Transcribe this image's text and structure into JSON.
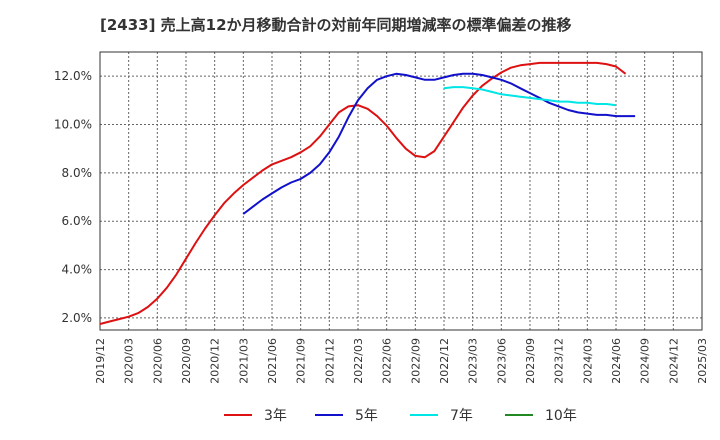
{
  "title": "[2433]  売上高12か月移動合計の対前年同期増減率の標準偏差の推移",
  "chart_data": {
    "type": "line",
    "y_unit": "%",
    "ylim": [
      1.5,
      13.0
    ],
    "yticks": [
      2.0,
      4.0,
      6.0,
      8.0,
      10.0,
      12.0
    ],
    "ytick_labels": [
      "2.0%",
      "4.0%",
      "6.0%",
      "8.0%",
      "10.0%",
      "12.0%"
    ],
    "xlim": [
      "2019-12",
      "2025-03"
    ],
    "xtick_labels": [
      "2019/12",
      "2020/03",
      "2020/06",
      "2020/09",
      "2020/12",
      "2021/03",
      "2021/06",
      "2021/09",
      "2021/12",
      "2022/03",
      "2022/06",
      "2022/09",
      "2022/12",
      "2023/03",
      "2023/06",
      "2023/09",
      "2023/12",
      "2024/03",
      "2024/06",
      "2024/09",
      "2024/12",
      "2025/03"
    ],
    "grid": true,
    "legend_position": "bottom",
    "series": [
      {
        "name": "3年",
        "color": "#dd1111",
        "points": [
          [
            "2019-12",
            1.75
          ],
          [
            "2020-01",
            1.85
          ],
          [
            "2020-02",
            1.95
          ],
          [
            "2020-03",
            2.05
          ],
          [
            "2020-04",
            2.2
          ],
          [
            "2020-05",
            2.45
          ],
          [
            "2020-06",
            2.8
          ],
          [
            "2020-07",
            3.25
          ],
          [
            "2020-08",
            3.8
          ],
          [
            "2020-09",
            4.45
          ],
          [
            "2020-10",
            5.1
          ],
          [
            "2020-11",
            5.7
          ],
          [
            "2020-12",
            6.25
          ],
          [
            "2020-13",
            6.75
          ],
          [
            "2021-02",
            7.15
          ],
          [
            "2021-03",
            7.5
          ],
          [
            "2021-04",
            7.8
          ],
          [
            "2021-05",
            8.1
          ],
          [
            "2021-06",
            8.35
          ],
          [
            "2021-07",
            8.5
          ],
          [
            "2021-08",
            8.65
          ],
          [
            "2021-09",
            8.85
          ],
          [
            "2021-10",
            9.1
          ],
          [
            "2021-11",
            9.5
          ],
          [
            "2021-12",
            10.0
          ],
          [
            "2022-01",
            10.5
          ],
          [
            "2022-02",
            10.75
          ],
          [
            "2022-03",
            10.8
          ],
          [
            "2022-04",
            10.65
          ],
          [
            "2022-05",
            10.35
          ],
          [
            "2022-06",
            9.95
          ],
          [
            "2022-07",
            9.45
          ],
          [
            "2022-08",
            9.0
          ],
          [
            "2022-09",
            8.7
          ],
          [
            "2022-10",
            8.65
          ],
          [
            "2022-11",
            8.9
          ],
          [
            "2022-12",
            9.5
          ],
          [
            "2023-01",
            10.1
          ],
          [
            "2023-02",
            10.7
          ],
          [
            "2023-03",
            11.2
          ],
          [
            "2023-04",
            11.6
          ],
          [
            "2023-05",
            11.9
          ],
          [
            "2023-06",
            12.15
          ],
          [
            "2023-07",
            12.35
          ],
          [
            "2023-08",
            12.45
          ],
          [
            "2023-09",
            12.5
          ],
          [
            "2023-10",
            12.55
          ],
          [
            "2023-11",
            12.55
          ],
          [
            "2023-12",
            12.55
          ],
          [
            "2024-01",
            12.55
          ],
          [
            "2024-02",
            12.55
          ],
          [
            "2024-03",
            12.55
          ],
          [
            "2024-04",
            12.55
          ],
          [
            "2024-05",
            12.5
          ],
          [
            "2024-06",
            12.4
          ],
          [
            "2024-07",
            12.1
          ]
        ]
      },
      {
        "name": "5年",
        "color": "#1111cc",
        "points": [
          [
            "2021-03",
            6.3
          ],
          [
            "2021-04",
            6.6
          ],
          [
            "2021-05",
            6.9
          ],
          [
            "2021-06",
            7.15
          ],
          [
            "2021-07",
            7.4
          ],
          [
            "2021-08",
            7.6
          ],
          [
            "2021-09",
            7.75
          ],
          [
            "2021-10",
            8.0
          ],
          [
            "2021-11",
            8.35
          ],
          [
            "2021-12",
            8.85
          ],
          [
            "2022-01",
            9.5
          ],
          [
            "2022-02",
            10.3
          ],
          [
            "2022-03",
            11.0
          ],
          [
            "2022-04",
            11.5
          ],
          [
            "2022-05",
            11.85
          ],
          [
            "2022-06",
            12.0
          ],
          [
            "2022-07",
            12.1
          ],
          [
            "2022-08",
            12.05
          ],
          [
            "2022-09",
            11.95
          ],
          [
            "2022-10",
            11.85
          ],
          [
            "2022-11",
            11.85
          ],
          [
            "2022-12",
            11.95
          ],
          [
            "2023-01",
            12.05
          ],
          [
            "2023-02",
            12.1
          ],
          [
            "2023-03",
            12.1
          ],
          [
            "2023-04",
            12.05
          ],
          [
            "2023-05",
            11.95
          ],
          [
            "2023-06",
            11.85
          ],
          [
            "2023-07",
            11.7
          ],
          [
            "2023-08",
            11.5
          ],
          [
            "2023-09",
            11.3
          ],
          [
            "2023-10",
            11.1
          ],
          [
            "2023-11",
            10.9
          ],
          [
            "2023-12",
            10.75
          ],
          [
            "2024-01",
            10.6
          ],
          [
            "2024-02",
            10.5
          ],
          [
            "2024-03",
            10.45
          ],
          [
            "2024-04",
            10.4
          ],
          [
            "2024-05",
            10.4
          ],
          [
            "2024-06",
            10.35
          ],
          [
            "2024-07",
            10.35
          ],
          [
            "2024-08",
            10.35
          ]
        ]
      },
      {
        "name": "7年",
        "color": "#00e5e5",
        "points": [
          [
            "2022-12",
            11.5
          ],
          [
            "2023-01",
            11.55
          ],
          [
            "2023-02",
            11.55
          ],
          [
            "2023-03",
            11.5
          ],
          [
            "2023-04",
            11.45
          ],
          [
            "2023-05",
            11.35
          ],
          [
            "2023-06",
            11.25
          ],
          [
            "2023-07",
            11.2
          ],
          [
            "2023-08",
            11.15
          ],
          [
            "2023-09",
            11.1
          ],
          [
            "2023-10",
            11.05
          ],
          [
            "2023-11",
            11.0
          ],
          [
            "2023-12",
            10.95
          ],
          [
            "2024-01",
            10.95
          ],
          [
            "2024-02",
            10.9
          ],
          [
            "2024-03",
            10.9
          ],
          [
            "2024-04",
            10.85
          ],
          [
            "2024-05",
            10.85
          ],
          [
            "2024-06",
            10.8
          ]
        ]
      },
      {
        "name": "10年",
        "color": "#228822",
        "points": []
      }
    ]
  }
}
